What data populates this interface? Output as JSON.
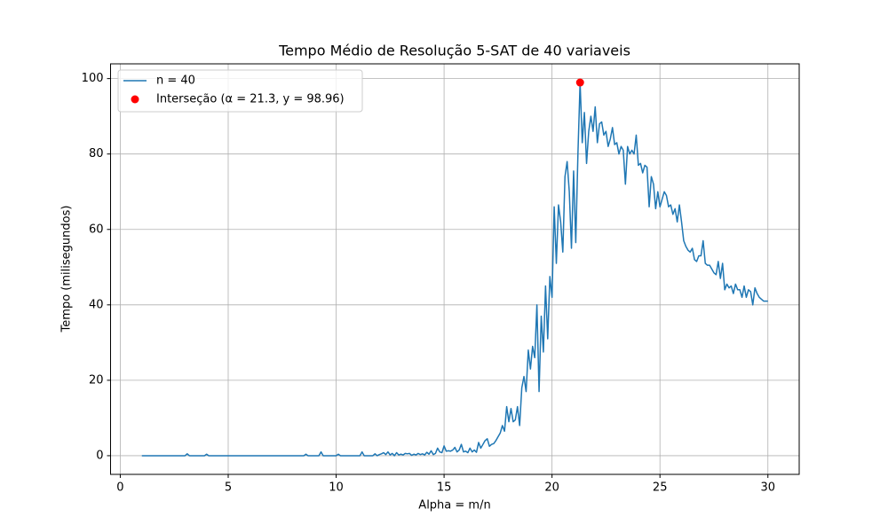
{
  "chart_data": {
    "type": "line",
    "title": "Tempo Médio de Resolução 5-SAT de 40 variaveis",
    "xlabel": "Alpha = m/n",
    "ylabel": "Tempo (milisegundos)",
    "xlim": [
      -0.45,
      31.45
    ],
    "ylim": [
      -4.95,
      103.91
    ],
    "xticks": [
      0,
      5,
      10,
      15,
      20,
      25,
      30
    ],
    "yticks": [
      0,
      20,
      40,
      60,
      80,
      100
    ],
    "grid": true,
    "legend": "upper left",
    "series": [
      {
        "name": "n = 40",
        "type": "line",
        "color": "#1f77b4",
        "x": [
          1,
          1.1,
          1.2,
          1.3,
          1.4,
          1.5,
          1.6,
          1.7,
          1.8,
          1.9,
          2,
          2.1,
          2.2,
          2.3,
          2.4,
          2.5,
          2.6,
          2.7,
          2.8,
          2.9,
          3,
          3.1,
          3.2,
          3.3,
          3.4,
          3.5,
          3.6,
          3.7,
          3.8,
          3.9,
          4,
          4.1,
          4.2,
          4.3,
          4.4,
          4.5,
          4.6,
          4.7,
          4.8,
          4.9,
          5,
          5.1,
          5.2,
          5.3,
          5.4,
          5.5,
          5.6,
          5.7,
          5.8,
          5.9,
          6,
          6.1,
          6.2,
          6.3,
          6.4,
          6.5,
          6.6,
          6.7,
          6.8,
          6.9,
          7,
          7.1,
          7.2,
          7.3,
          7.4,
          7.5,
          7.6,
          7.7,
          7.8,
          7.9,
          8,
          8.1,
          8.2,
          8.3,
          8.4,
          8.5,
          8.6,
          8.7,
          8.8,
          8.9,
          9,
          9.1,
          9.2,
          9.3,
          9.4,
          9.5,
          9.6,
          9.7,
          9.8,
          9.9,
          10,
          10.1,
          10.2,
          10.3,
          10.4,
          10.5,
          10.6,
          10.7,
          10.8,
          10.9,
          11,
          11.1,
          11.2,
          11.3,
          11.4,
          11.5,
          11.6,
          11.7,
          11.8,
          11.9,
          12,
          12.1,
          12.2,
          12.3,
          12.4,
          12.5,
          12.6,
          12.7,
          12.8,
          12.9,
          13,
          13.1,
          13.2,
          13.3,
          13.4,
          13.5,
          13.6,
          13.7,
          13.8,
          13.9,
          14,
          14.1,
          14.2,
          14.3,
          14.4,
          14.5,
          14.6,
          14.7,
          14.8,
          14.9,
          15,
          15.1,
          15.2,
          15.3,
          15.4,
          15.5,
          15.6,
          15.7,
          15.8,
          15.9,
          16,
          16.1,
          16.2,
          16.3,
          16.4,
          16.5,
          16.6,
          16.7,
          16.8,
          16.9,
          17,
          17.1,
          17.2,
          17.3,
          17.4,
          17.5,
          17.6,
          17.7,
          17.8,
          17.9,
          18,
          18.1,
          18.2,
          18.3,
          18.4,
          18.5,
          18.6,
          18.7,
          18.8,
          18.9,
          19,
          19.1,
          19.2,
          19.3,
          19.4,
          19.5,
          19.6,
          19.7,
          19.8,
          19.9,
          20,
          20.1,
          20.2,
          20.3,
          20.4,
          20.5,
          20.6,
          20.7,
          20.8,
          20.9,
          21,
          21.1,
          21.2,
          21.3,
          21.4,
          21.5,
          21.6,
          21.7,
          21.8,
          21.9,
          22,
          22.1,
          22.2,
          22.3,
          22.4,
          22.5,
          22.6,
          22.7,
          22.8,
          22.9,
          23,
          23.1,
          23.2,
          23.3,
          23.4,
          23.5,
          23.6,
          23.7,
          23.8,
          23.9,
          24,
          24.1,
          24.2,
          24.3,
          24.4,
          24.5,
          24.6,
          24.7,
          24.8,
          24.9,
          25,
          25.1,
          25.2,
          25.3,
          25.4,
          25.5,
          25.6,
          25.7,
          25.8,
          25.9,
          26,
          26.1,
          26.2,
          26.3,
          26.4,
          26.5,
          26.6,
          26.7,
          26.8,
          26.9,
          27,
          27.1,
          27.2,
          27.3,
          27.4,
          27.5,
          27.6,
          27.7,
          27.8,
          27.9,
          28,
          28.1,
          28.2,
          28.3,
          28.4,
          28.5,
          28.6,
          28.7,
          28.8,
          28.9,
          29,
          29.1,
          29.2,
          29.3,
          29.4,
          29.5,
          29.6,
          29.7,
          29.8,
          29.9,
          30
        ],
        "values": [
          0,
          0,
          0,
          0,
          0,
          0,
          0,
          0,
          0,
          0,
          0,
          0,
          0,
          0,
          0,
          0,
          0,
          0,
          0,
          0,
          0,
          0.5,
          0,
          0,
          0,
          0,
          0,
          0,
          0,
          0,
          0.4,
          0,
          0,
          0,
          0,
          0,
          0,
          0,
          0,
          0,
          0,
          0,
          0,
          0,
          0,
          0,
          0,
          0,
          0,
          0,
          0,
          0,
          0,
          0,
          0,
          0,
          0,
          0,
          0,
          0,
          0,
          0,
          0,
          0,
          0,
          0,
          0,
          0,
          0,
          0,
          0,
          0,
          0,
          0,
          0,
          0,
          0.4,
          0,
          0,
          0,
          0,
          0,
          0,
          1,
          0,
          0,
          0,
          0,
          0,
          0,
          0,
          0.4,
          0,
          0,
          0,
          0,
          0,
          0,
          0,
          0,
          0,
          0,
          1,
          0,
          0,
          0,
          0,
          0,
          0.5,
          0,
          0.3,
          0.5,
          0.8,
          0.3,
          1,
          0.2,
          0.6,
          0,
          0.8,
          0.2,
          0.4,
          0.2,
          0.6,
          0.5,
          0.6,
          0.1,
          0.4,
          0.2,
          0.6,
          0.3,
          0.5,
          0.2,
          0.9,
          0.4,
          1.3,
          0.3,
          0.6,
          2,
          1,
          0.8,
          2.6,
          1.2,
          1.3,
          1.2,
          1.5,
          2.2,
          1,
          1.5,
          3,
          1,
          1.2,
          0.8,
          2,
          1,
          1.5,
          0.9,
          3.5,
          2,
          3,
          4,
          4.5,
          2.5,
          3,
          3.2,
          4,
          5,
          6,
          8,
          6.5,
          13,
          9,
          12.5,
          9,
          9.5,
          13,
          8,
          18,
          21,
          17,
          28,
          23,
          29,
          26,
          40,
          17,
          37,
          27.5,
          45,
          31,
          47.5,
          42,
          66,
          51,
          66.5,
          62,
          54,
          74,
          78,
          70,
          55,
          75.5,
          56.5,
          80,
          98.96,
          83,
          91,
          77.5,
          86,
          90,
          86,
          92.5,
          83,
          88,
          88.5,
          85,
          86,
          82,
          84,
          87,
          82.5,
          83,
          80,
          82,
          81,
          72,
          82,
          80,
          81,
          80,
          85,
          77,
          77.5,
          75,
          77,
          76.5,
          66,
          74,
          72,
          65.5,
          70,
          66,
          68,
          70,
          69,
          66,
          66.5,
          64,
          65.5,
          62,
          66.5,
          62,
          57,
          55.5,
          54.5,
          54,
          55,
          52,
          51.5,
          53,
          53,
          57,
          51,
          50.5,
          50.5,
          49.5,
          48.5,
          48,
          51.5,
          47,
          51,
          44,
          45.5,
          44.5,
          45,
          43,
          45.5,
          44,
          44,
          42,
          45,
          42,
          44,
          43.5,
          40,
          44.5,
          43,
          42,
          41.5,
          41,
          41,
          41
        ]
      },
      {
        "name": "Interseção (α = 21.3, y = 98.96)",
        "type": "scatter",
        "color": "#ff0000",
        "x": [
          21.3
        ],
        "values": [
          98.96
        ]
      }
    ]
  }
}
